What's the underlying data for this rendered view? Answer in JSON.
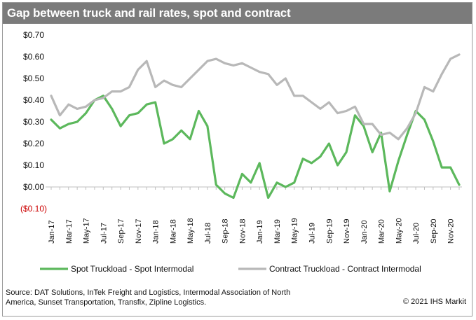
{
  "chart_data": {
    "type": "line",
    "title": "Gap between truck and rail rates, spot and contract",
    "xlabel": "",
    "ylabel": "",
    "ylim": [
      -0.1,
      0.7
    ],
    "y_ticks": [
      {
        "value": -0.1,
        "label": "($0.10)"
      },
      {
        "value": 0.0,
        "label": "$0.00"
      },
      {
        "value": 0.1,
        "label": "$0.10"
      },
      {
        "value": 0.2,
        "label": "$0.20"
      },
      {
        "value": 0.3,
        "label": "$0.30"
      },
      {
        "value": 0.4,
        "label": "$0.40"
      },
      {
        "value": 0.5,
        "label": "$0.50"
      },
      {
        "value": 0.6,
        "label": "$0.60"
      },
      {
        "value": 0.7,
        "label": "$0.70"
      }
    ],
    "x": [
      "Jan-17",
      "Feb-17",
      "Mar-17",
      "Apr-17",
      "May-17",
      "Jun-17",
      "Jul-17",
      "Aug-17",
      "Sep-17",
      "Oct-17",
      "Nov-17",
      "Dec-17",
      "Jan-18",
      "Feb-18",
      "Mar-18",
      "Apr-18",
      "May-18",
      "Jun-18",
      "Jul-18",
      "Aug-18",
      "Sep-18",
      "Oct-18",
      "Nov-18",
      "Dec-18",
      "Jan-19",
      "Feb-19",
      "Mar-19",
      "Apr-19",
      "May-19",
      "Jun-19",
      "Jul-19",
      "Aug-19",
      "Sep-19",
      "Oct-19",
      "Nov-19",
      "Dec-19",
      "Jan-20",
      "Feb-20",
      "Mar-20",
      "Apr-20",
      "May-20",
      "Jun-20",
      "Jul-20",
      "Aug-20",
      "Sep-20",
      "Oct-20",
      "Nov-20",
      "Dec-20"
    ],
    "x_tick_labels": [
      "Jan-17",
      "Mar-17",
      "May-17",
      "Jul-17",
      "Sep-17",
      "Nov-17",
      "Jan-18",
      "Mar-18",
      "May-18",
      "Jul-18",
      "Sep-18",
      "Nov-18",
      "Jan-19",
      "Mar-19",
      "May-19",
      "Jul-19",
      "Sep-19",
      "Nov-19",
      "Jan-20",
      "Mar-20",
      "May-20",
      "Jul-20",
      "Sep-20",
      "Nov-20"
    ],
    "series": [
      {
        "name": "Spot Truckload - Spot Intermodal",
        "color": "#5cb85c",
        "values": [
          0.31,
          0.27,
          0.29,
          0.3,
          0.34,
          0.4,
          0.42,
          0.36,
          0.28,
          0.33,
          0.34,
          0.38,
          0.39,
          0.2,
          0.22,
          0.26,
          0.22,
          0.35,
          0.28,
          0.01,
          -0.03,
          -0.05,
          0.06,
          0.02,
          0.11,
          -0.05,
          0.02,
          0.0,
          0.02,
          0.13,
          0.11,
          0.14,
          0.2,
          0.1,
          0.16,
          0.33,
          0.28,
          0.16,
          0.25,
          -0.02,
          0.12,
          0.24,
          0.35,
          0.31,
          0.21,
          0.09,
          0.09,
          0.01
        ]
      },
      {
        "name": "Contract Truckload - Contract Intermodal",
        "color": "#b8b8b8",
        "values": [
          0.42,
          0.33,
          0.38,
          0.36,
          0.37,
          0.4,
          0.41,
          0.44,
          0.44,
          0.46,
          0.54,
          0.58,
          0.46,
          0.49,
          0.47,
          0.46,
          0.5,
          0.54,
          0.58,
          0.59,
          0.57,
          0.56,
          0.57,
          0.55,
          0.53,
          0.52,
          0.47,
          0.5,
          0.42,
          0.42,
          0.39,
          0.36,
          0.39,
          0.34,
          0.35,
          0.37,
          0.29,
          0.29,
          0.24,
          0.25,
          0.22,
          0.27,
          0.34,
          0.46,
          0.44,
          0.52,
          0.59,
          0.61
        ]
      }
    ],
    "grid": false,
    "legend_position": "bottom"
  },
  "footer": {
    "source": "Source: DAT Solutions, InTek Freight and Logistics, Intermodal Association of North America, Sunset Transportation, Transfix, Zipline Logistics.",
    "copyright": "© 2021 IHS Markit"
  },
  "colors": {
    "title_bar": "#7b7b7b",
    "negative_label": "#cc0000",
    "axis": "#bfbfbf"
  }
}
